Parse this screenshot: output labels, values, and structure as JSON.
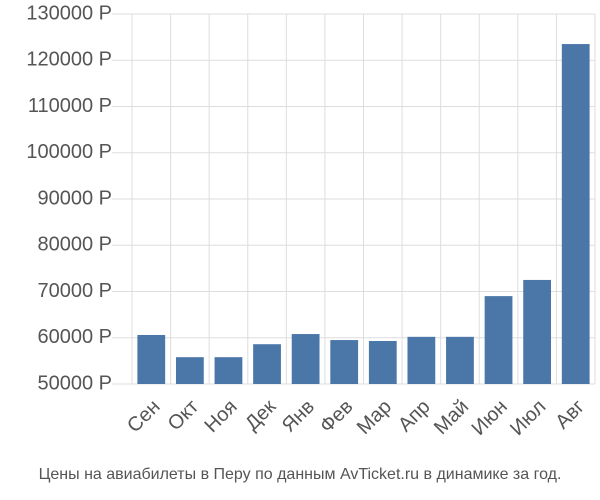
{
  "chart_data": {
    "type": "bar",
    "caption": "Цены на авиабилеты в Перу по данным AvTicket.ru в динамике за год.",
    "categories": [
      "Сен",
      "Окт",
      "Ноя",
      "Дек",
      "Янв",
      "Фев",
      "Мар",
      "Апр",
      "Май",
      "Июн",
      "Июл",
      "Авг"
    ],
    "values": [
      60600,
      55800,
      55800,
      58600,
      60800,
      59500,
      59300,
      60200,
      60200,
      69000,
      72500,
      123500
    ],
    "color": "#4a76a8",
    "ylim": [
      50000,
      130000
    ],
    "yticks": [
      {
        "value": 50000,
        "label": "50000 Р"
      },
      {
        "value": 60000,
        "label": "60000 Р"
      },
      {
        "value": 70000,
        "label": "70000 Р"
      },
      {
        "value": 80000,
        "label": "80000 Р"
      },
      {
        "value": 90000,
        "label": "90000 Р"
      },
      {
        "value": 100000,
        "label": "100000 Р"
      },
      {
        "value": 110000,
        "label": "110000 Р"
      },
      {
        "value": 120000,
        "label": "120000 Р"
      },
      {
        "value": 130000,
        "label": "130000 Р"
      }
    ],
    "grid": true
  }
}
